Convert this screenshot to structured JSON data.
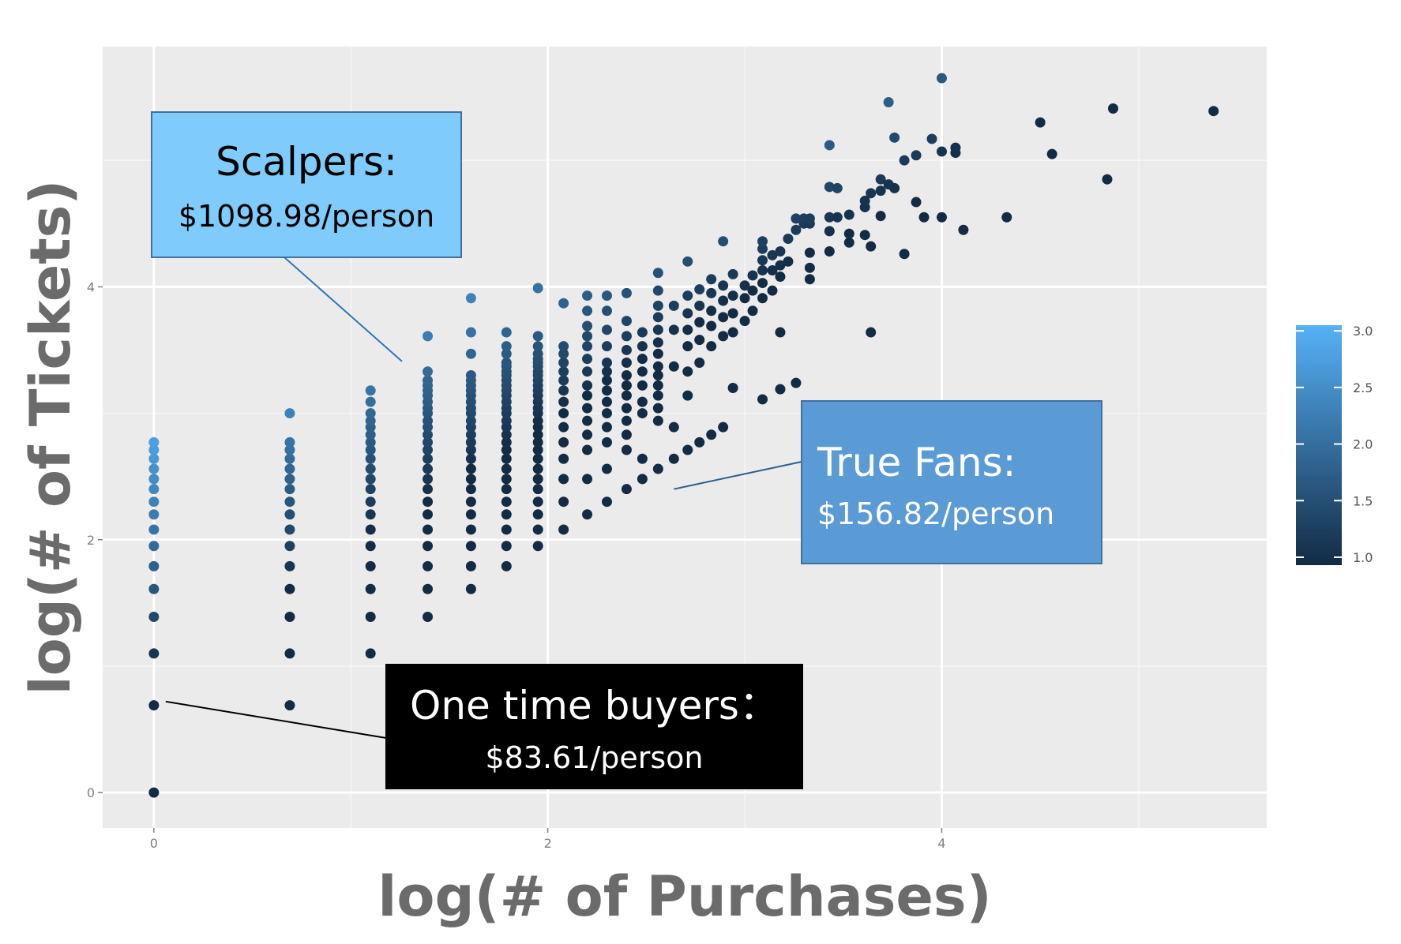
{
  "chart_data": {
    "type": "scatter",
    "title": "",
    "xlabel": "log(# of Purchases)",
    "ylabel": "log(# of Tickets)",
    "xlim": [
      -0.26,
      5.65
    ],
    "ylim": [
      -0.28,
      5.9
    ],
    "x_ticks": [
      0,
      2,
      4
    ],
    "y_ticks": [
      0,
      2,
      4
    ],
    "x_tick_labels": [
      "0",
      "2",
      "4"
    ],
    "y_tick_labels": [
      "0",
      "2",
      "4"
    ],
    "grid": true,
    "color_legend": {
      "placement": "right",
      "min": 0.93,
      "max": 3.05,
      "ticks": [
        1.0,
        1.5,
        2.0,
        2.5,
        3.0
      ],
      "tick_labels": [
        "1.0",
        "1.5",
        "2.0",
        "2.5",
        "3.0"
      ],
      "low_color": "#132b43",
      "high_color": "#56b1f7"
    },
    "background_color": "#ebebeb",
    "columns": [
      {
        "x": 0.0,
        "ys": [
          0.0,
          0.69,
          1.1,
          1.39,
          1.61,
          1.79,
          1.95,
          2.08,
          2.2,
          2.3,
          2.4,
          2.48,
          2.56,
          2.64,
          2.71,
          2.77
        ]
      },
      {
        "x": 0.69,
        "ys": [
          0.69,
          1.1,
          1.39,
          1.61,
          1.79,
          1.95,
          2.08,
          2.2,
          2.3,
          2.4,
          2.48,
          2.56,
          2.64,
          2.71,
          2.77,
          3.0
        ]
      },
      {
        "x": 1.1,
        "ys": [
          1.1,
          1.39,
          1.61,
          1.79,
          1.95,
          2.08,
          2.2,
          2.3,
          2.4,
          2.48,
          2.56,
          2.64,
          2.71,
          2.77,
          2.83,
          2.89,
          2.94,
          3.0,
          3.09,
          3.18
        ]
      },
      {
        "x": 1.39,
        "ys": [
          1.39,
          1.61,
          1.79,
          1.95,
          2.08,
          2.2,
          2.3,
          2.4,
          2.48,
          2.56,
          2.64,
          2.71,
          2.77,
          2.83,
          2.89,
          2.94,
          3.0,
          3.04,
          3.09,
          3.14,
          3.18,
          3.22,
          3.26,
          3.33,
          3.61
        ]
      },
      {
        "x": 1.61,
        "ys": [
          1.61,
          1.79,
          1.95,
          2.08,
          2.2,
          2.3,
          2.4,
          2.48,
          2.56,
          2.64,
          2.71,
          2.77,
          2.83,
          2.89,
          2.94,
          3.0,
          3.04,
          3.09,
          3.14,
          3.18,
          3.22,
          3.26,
          3.3,
          3.47,
          3.64,
          3.91
        ]
      },
      {
        "x": 1.79,
        "ys": [
          1.79,
          1.95,
          2.08,
          2.2,
          2.3,
          2.4,
          2.48,
          2.56,
          2.64,
          2.71,
          2.77,
          2.83,
          2.89,
          2.94,
          3.0,
          3.04,
          3.09,
          3.14,
          3.18,
          3.22,
          3.26,
          3.3,
          3.33,
          3.37,
          3.4,
          3.47,
          3.53,
          3.64
        ]
      },
      {
        "x": 1.95,
        "ys": [
          1.95,
          2.08,
          2.2,
          2.3,
          2.4,
          2.48,
          2.56,
          2.64,
          2.71,
          2.77,
          2.83,
          2.89,
          2.94,
          3.0,
          3.04,
          3.09,
          3.14,
          3.18,
          3.22,
          3.26,
          3.3,
          3.33,
          3.37,
          3.4,
          3.43,
          3.47,
          3.53,
          3.61,
          3.99
        ]
      },
      {
        "x": 2.08,
        "ys": [
          2.08,
          2.3,
          2.48,
          2.64,
          2.77,
          2.89,
          3.0,
          3.09,
          3.18,
          3.26,
          3.33,
          3.4,
          3.47,
          3.53,
          3.87
        ]
      },
      {
        "x": 2.2,
        "ys": [
          2.2,
          2.48,
          2.71,
          2.83,
          2.94,
          3.04,
          3.14,
          3.22,
          3.33,
          3.43,
          3.53,
          3.61,
          3.69,
          3.81,
          3.93
        ]
      },
      {
        "x": 2.3,
        "ys": [
          2.3,
          2.56,
          2.77,
          2.89,
          3.0,
          3.09,
          3.18,
          3.26,
          3.33,
          3.4,
          3.53,
          3.66,
          3.81,
          3.93
        ]
      },
      {
        "x": 2.4,
        "ys": [
          2.4,
          2.71,
          2.83,
          2.94,
          3.04,
          3.14,
          3.22,
          3.3,
          3.4,
          3.5,
          3.61,
          3.73,
          3.95
        ]
      },
      {
        "x": 2.48,
        "ys": [
          2.48,
          2.64,
          3.0,
          3.09,
          3.22,
          3.33,
          3.43,
          3.53,
          3.64
        ]
      },
      {
        "x": 2.56,
        "ys": [
          2.56,
          2.94,
          3.04,
          3.14,
          3.22,
          3.3,
          3.37,
          3.47,
          3.56,
          3.66,
          3.76,
          3.85,
          3.97,
          4.11
        ]
      }
    ],
    "scattered_points": [
      [
        2.64,
        2.64
      ],
      [
        2.64,
        2.89
      ],
      [
        2.64,
        3.37
      ],
      [
        2.64,
        3.66
      ],
      [
        2.64,
        3.85
      ],
      [
        2.71,
        2.71
      ],
      [
        2.71,
        3.14
      ],
      [
        2.71,
        3.33
      ],
      [
        2.71,
        3.53
      ],
      [
        2.71,
        3.66
      ],
      [
        2.71,
        3.79
      ],
      [
        2.71,
        3.93
      ],
      [
        2.71,
        4.2
      ],
      [
        2.77,
        2.77
      ],
      [
        2.77,
        3.4
      ],
      [
        2.77,
        3.58
      ],
      [
        2.77,
        3.72
      ],
      [
        2.77,
        3.85
      ],
      [
        2.77,
        3.98
      ],
      [
        2.83,
        2.83
      ],
      [
        2.83,
        3.53
      ],
      [
        2.83,
        3.69
      ],
      [
        2.83,
        3.81
      ],
      [
        2.83,
        3.95
      ],
      [
        2.83,
        4.06
      ],
      [
        2.89,
        2.89
      ],
      [
        2.89,
        3.61
      ],
      [
        2.89,
        3.76
      ],
      [
        2.89,
        3.89
      ],
      [
        2.89,
        4.01
      ],
      [
        2.89,
        4.36
      ],
      [
        2.94,
        3.64
      ],
      [
        2.94,
        3.79
      ],
      [
        2.94,
        3.93
      ],
      [
        2.94,
        4.1
      ],
      [
        2.94,
        3.2
      ],
      [
        3.0,
        3.73
      ],
      [
        3.0,
        3.91
      ],
      [
        3.0,
        4.01
      ],
      [
        3.04,
        3.81
      ],
      [
        3.04,
        3.97
      ],
      [
        3.04,
        4.09
      ],
      [
        3.09,
        3.11
      ],
      [
        3.09,
        3.91
      ],
      [
        3.09,
        4.03
      ],
      [
        3.09,
        4.13
      ],
      [
        3.09,
        4.21
      ],
      [
        3.09,
        4.3
      ],
      [
        3.09,
        4.36
      ],
      [
        3.14,
        3.97
      ],
      [
        3.14,
        4.13
      ],
      [
        3.14,
        4.25
      ],
      [
        3.18,
        3.19
      ],
      [
        3.18,
        3.64
      ],
      [
        3.18,
        4.08
      ],
      [
        3.18,
        4.17
      ],
      [
        3.18,
        4.28
      ],
      [
        3.22,
        4.2
      ],
      [
        3.22,
        4.38
      ],
      [
        3.26,
        3.24
      ],
      [
        3.26,
        4.45
      ],
      [
        3.26,
        4.54
      ],
      [
        3.3,
        4.5
      ],
      [
        3.3,
        4.54
      ],
      [
        3.33,
        4.06
      ],
      [
        3.33,
        4.15
      ],
      [
        3.33,
        4.27
      ],
      [
        3.33,
        4.5
      ],
      [
        3.33,
        4.54
      ],
      [
        3.43,
        4.28
      ],
      [
        3.43,
        4.44
      ],
      [
        3.43,
        4.55
      ],
      [
        3.43,
        4.79
      ],
      [
        3.43,
        5.12
      ],
      [
        3.47,
        4.55
      ],
      [
        3.47,
        4.78
      ],
      [
        3.53,
        4.35
      ],
      [
        3.53,
        4.42
      ],
      [
        3.53,
        4.57
      ],
      [
        3.61,
        4.41
      ],
      [
        3.61,
        4.63
      ],
      [
        3.61,
        4.68
      ],
      [
        3.64,
        3.64
      ],
      [
        3.64,
        4.32
      ],
      [
        3.64,
        4.74
      ],
      [
        3.69,
        4.56
      ],
      [
        3.69,
        4.76
      ],
      [
        3.69,
        4.85
      ],
      [
        3.73,
        4.81
      ],
      [
        3.73,
        5.46
      ],
      [
        3.76,
        4.78
      ],
      [
        3.76,
        5.18
      ],
      [
        3.81,
        4.26
      ],
      [
        3.81,
        5.0
      ],
      [
        3.87,
        4.67
      ],
      [
        3.87,
        5.04
      ],
      [
        3.91,
        4.55
      ],
      [
        3.95,
        5.17
      ],
      [
        4.0,
        4.55
      ],
      [
        4.0,
        5.07
      ],
      [
        4.0,
        5.65
      ],
      [
        4.07,
        5.06
      ],
      [
        4.07,
        5.1
      ],
      [
        4.11,
        4.45
      ],
      [
        4.33,
        4.55
      ],
      [
        4.5,
        5.3
      ],
      [
        4.56,
        5.05
      ],
      [
        4.84,
        4.85
      ],
      [
        4.87,
        5.41
      ],
      [
        5.38,
        5.39
      ]
    ],
    "annotations": [
      {
        "id": "scalpers",
        "title": "Scalpers:",
        "value": "$1098.98/person",
        "box_color": "#7fcbfb",
        "text_color": "#000000",
        "anchor": [
          1.26,
          3.41
        ]
      },
      {
        "id": "true_fans",
        "title": "True Fans:",
        "value": "$156.82/person",
        "box_color": "#5b9bd5",
        "text_color": "#ffffff",
        "anchor": [
          2.64,
          2.4
        ]
      },
      {
        "id": "one_time_buyers",
        "title": "One time buyers：",
        "value": "$83.61/person",
        "box_color": "#000000",
        "text_color": "#ffffff",
        "anchor": [
          0.06,
          0.72
        ]
      }
    ]
  }
}
